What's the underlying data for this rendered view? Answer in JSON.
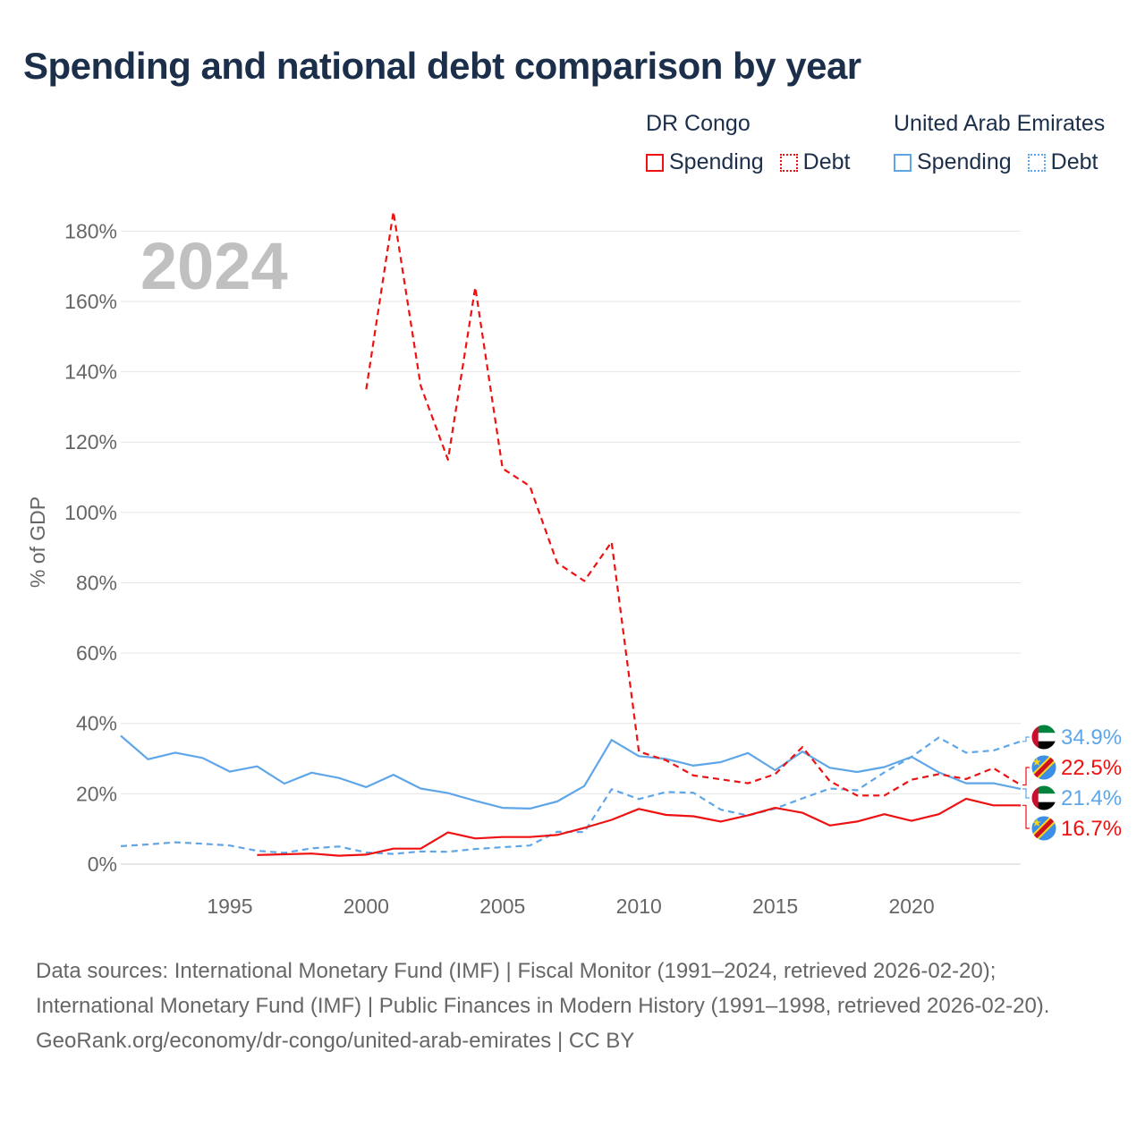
{
  "title": "Spending and national debt comparison by year",
  "legend": {
    "groups": [
      {
        "name": "DR Congo",
        "color": "#ee1111",
        "spending_label": "Spending",
        "debt_label": "Debt"
      },
      {
        "name": "United Arab Emirates",
        "color": "#5ea6e8",
        "spending_label": "Spending",
        "debt_label": "Debt"
      }
    ]
  },
  "chart_data": {
    "type": "line",
    "title": "Spending and national debt comparison by year",
    "year_label": "2024",
    "ylabel": "% of GDP",
    "xlim": [
      1991,
      2024
    ],
    "ylim": [
      0,
      190
    ],
    "x_ticks": [
      1995,
      2000,
      2005,
      2010,
      2015,
      2020
    ],
    "y_ticks": [
      0,
      20,
      40,
      60,
      80,
      100,
      120,
      140,
      160,
      180
    ],
    "y_tick_labels": [
      "0%",
      "20%",
      "40%",
      "60%",
      "80%",
      "100%",
      "120%",
      "140%",
      "160%",
      "180%"
    ],
    "grid": "horizontal",
    "series": [
      {
        "name": "United Arab Emirates Spending",
        "country": "United Arab Emirates",
        "kind": "Spending",
        "color": "#5ea6e8",
        "dashed": false,
        "points": [
          [
            1991,
            36.5
          ],
          [
            1992,
            29.8
          ],
          [
            1993,
            31.7
          ],
          [
            1994,
            30.2
          ],
          [
            1995,
            26.3
          ],
          [
            1996,
            27.8
          ],
          [
            1997,
            22.9
          ],
          [
            1998,
            26
          ],
          [
            1999,
            24.5
          ],
          [
            2000,
            21.9
          ],
          [
            2001,
            25.4
          ],
          [
            2002,
            21.5
          ],
          [
            2003,
            20.2
          ],
          [
            2004,
            18
          ],
          [
            2005,
            16
          ],
          [
            2006,
            15.8
          ],
          [
            2007,
            17.8
          ],
          [
            2008,
            22.2
          ],
          [
            2009,
            35.3
          ],
          [
            2010,
            30.7
          ],
          [
            2011,
            29.9
          ],
          [
            2012,
            28
          ],
          [
            2013,
            29
          ],
          [
            2014,
            31.6
          ],
          [
            2015,
            26.7
          ],
          [
            2016,
            32
          ],
          [
            2017,
            27.4
          ],
          [
            2018,
            26.2
          ],
          [
            2019,
            27.6
          ],
          [
            2020,
            30.5
          ],
          [
            2021,
            26.1
          ],
          [
            2022,
            23
          ],
          [
            2023,
            23
          ],
          [
            2024,
            21.4
          ]
        ]
      },
      {
        "name": "United Arab Emirates Debt",
        "country": "United Arab Emirates",
        "kind": "Debt",
        "color": "#5ea6e8",
        "dashed": true,
        "points": [
          [
            1991,
            5.1
          ],
          [
            1992,
            5.6
          ],
          [
            1993,
            6.2
          ],
          [
            1994,
            5.8
          ],
          [
            1995,
            5.3
          ],
          [
            1996,
            3.8
          ],
          [
            1997,
            3.2
          ],
          [
            1998,
            4.5
          ],
          [
            1999,
            5
          ],
          [
            2000,
            3.3
          ],
          [
            2001,
            2.9
          ],
          [
            2002,
            3.6
          ],
          [
            2003,
            3.5
          ],
          [
            2004,
            4.3
          ],
          [
            2005,
            4.8
          ],
          [
            2006,
            5.3
          ],
          [
            2007,
            9.2
          ],
          [
            2008,
            9.1
          ],
          [
            2009,
            21.3
          ],
          [
            2010,
            18.5
          ],
          [
            2011,
            20.5
          ],
          [
            2012,
            20.3
          ],
          [
            2013,
            15.5
          ],
          [
            2014,
            13.8
          ],
          [
            2015,
            15.8
          ],
          [
            2016,
            18.7
          ],
          [
            2017,
            21.5
          ],
          [
            2018,
            21
          ],
          [
            2019,
            26.1
          ],
          [
            2020,
            30.5
          ],
          [
            2021,
            36
          ],
          [
            2022,
            31.7
          ],
          [
            2023,
            32.3
          ],
          [
            2024,
            34.9
          ]
        ]
      },
      {
        "name": "DR Congo Spending",
        "country": "DR Congo",
        "kind": "Spending",
        "color": "#ee1111",
        "dashed": false,
        "points": [
          [
            1996,
            2.6
          ],
          [
            1997,
            2.8
          ],
          [
            1998,
            3
          ],
          [
            1999,
            2.4
          ],
          [
            2000,
            2.7
          ],
          [
            2001,
            4.4
          ],
          [
            2002,
            4.4
          ],
          [
            2003,
            9
          ],
          [
            2004,
            7.3
          ],
          [
            2005,
            7.7
          ],
          [
            2006,
            7.7
          ],
          [
            2007,
            8.3
          ],
          [
            2008,
            10.3
          ],
          [
            2009,
            12.6
          ],
          [
            2010,
            15.7
          ],
          [
            2011,
            14
          ],
          [
            2012,
            13.6
          ],
          [
            2013,
            12.1
          ],
          [
            2014,
            13.9
          ],
          [
            2015,
            16
          ],
          [
            2016,
            14.6
          ],
          [
            2017,
            11
          ],
          [
            2018,
            12.1
          ],
          [
            2019,
            14.2
          ],
          [
            2020,
            12.3
          ],
          [
            2021,
            14.2
          ],
          [
            2022,
            18.6
          ],
          [
            2023,
            16.7
          ],
          [
            2024,
            16.7
          ]
        ]
      },
      {
        "name": "DR Congo Debt",
        "country": "DR Congo",
        "kind": "Debt",
        "color": "#ee1111",
        "dashed": true,
        "points": [
          [
            2000,
            135
          ],
          [
            2001,
            185.5
          ],
          [
            2002,
            136
          ],
          [
            2003,
            115
          ],
          [
            2004,
            164
          ],
          [
            2005,
            112.5
          ],
          [
            2006,
            107.5
          ],
          [
            2007,
            85.7
          ],
          [
            2008,
            80.5
          ],
          [
            2009,
            91.6
          ],
          [
            2010,
            32
          ],
          [
            2011,
            29.5
          ],
          [
            2012,
            25.2
          ],
          [
            2013,
            24.1
          ],
          [
            2014,
            23
          ],
          [
            2015,
            25.6
          ],
          [
            2016,
            33.3
          ],
          [
            2017,
            23.6
          ],
          [
            2018,
            19.5
          ],
          [
            2019,
            19.5
          ],
          [
            2020,
            24
          ],
          [
            2021,
            25.6
          ],
          [
            2022,
            24.2
          ],
          [
            2023,
            27.3
          ],
          [
            2024,
            22.5
          ]
        ]
      }
    ],
    "end_labels": [
      {
        "country": "United Arab Emirates",
        "kind": "Debt",
        "value": 34.9,
        "label": "34.9%",
        "color": "#5ea6e8",
        "flag": "uae"
      },
      {
        "country": "DR Congo",
        "kind": "Debt",
        "value": 22.5,
        "label": "22.5%",
        "color": "#ee1111",
        "flag": "drc"
      },
      {
        "country": "United Arab Emirates",
        "kind": "Spending",
        "value": 21.4,
        "label": "21.4%",
        "color": "#5ea6e8",
        "flag": "uae"
      },
      {
        "country": "DR Congo",
        "kind": "Spending",
        "value": 16.7,
        "label": "16.7%",
        "color": "#ee1111",
        "flag": "drc"
      }
    ]
  },
  "footer": {
    "sources": "Data sources: International Monetary Fund (IMF) | Fiscal Monitor (1991–2024, retrieved 2026-02-20); International Monetary Fund (IMF) | Public Finances in Modern History (1991–1998, retrieved 2026-02-20).",
    "credit": "GeoRank.org/economy/dr-congo/united-arab-emirates | CC BY"
  }
}
